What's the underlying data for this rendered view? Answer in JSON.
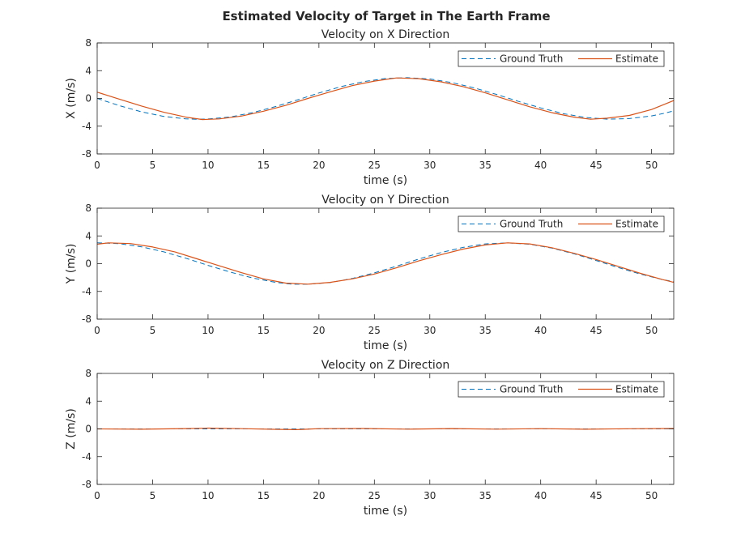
{
  "figure": {
    "title": "Estimated Velocity of Target in The Earth Frame"
  },
  "chart_data": [
    {
      "type": "line",
      "title": "Velocity on X Direction",
      "xlabel": "time (s)",
      "ylabel": "X (m/s)",
      "xlim": [
        0,
        52
      ],
      "ylim": [
        -8,
        8
      ],
      "xticks": [
        0,
        5,
        10,
        15,
        20,
        25,
        30,
        35,
        40,
        45,
        50
      ],
      "yticks": [
        -8,
        -4,
        0,
        4,
        8
      ],
      "grid": false,
      "legend_position": "top-right",
      "series": [
        {
          "name": "Ground Truth",
          "style": "dashed",
          "color": "#0072BD",
          "x": [
            0,
            2,
            4,
            6,
            8,
            9,
            10,
            12,
            14,
            16,
            18,
            20,
            22,
            24,
            26,
            28,
            30,
            32,
            34,
            36,
            38,
            40,
            42,
            44,
            46,
            48,
            50,
            51,
            52
          ],
          "y": [
            0,
            -1.04,
            -1.94,
            -2.59,
            -2.95,
            -3.0,
            -2.97,
            -2.67,
            -2.06,
            -1.22,
            -0.24,
            0.78,
            1.7,
            2.42,
            2.87,
            2.99,
            2.8,
            2.28,
            1.52,
            0.58,
            -0.43,
            -1.37,
            -2.18,
            -2.74,
            -2.99,
            -2.91,
            -2.52,
            -2.19,
            -1.8
          ]
        },
        {
          "name": "Estimate",
          "style": "solid",
          "color": "#D95319",
          "x": [
            0,
            2,
            4,
            6,
            8,
            9.5,
            11,
            13,
            15,
            17,
            19,
            21,
            23,
            25,
            27,
            29,
            31,
            33,
            35,
            37,
            39,
            41,
            43,
            44.5,
            46,
            48,
            50,
            52
          ],
          "y": [
            0.9,
            -0.1,
            -1.1,
            -2.0,
            -2.7,
            -3.05,
            -2.95,
            -2.55,
            -1.85,
            -1.0,
            0.0,
            0.95,
            1.85,
            2.5,
            2.95,
            2.85,
            2.4,
            1.7,
            0.8,
            -0.2,
            -1.2,
            -2.05,
            -2.7,
            -3.0,
            -2.85,
            -2.45,
            -1.6,
            -0.3
          ]
        }
      ]
    },
    {
      "type": "line",
      "title": "Velocity on Y Direction",
      "xlabel": "time (s)",
      "ylabel": "Y (m/s)",
      "xlim": [
        0,
        52
      ],
      "ylim": [
        -8,
        8
      ],
      "xticks": [
        0,
        5,
        10,
        15,
        20,
        25,
        30,
        35,
        40,
        45,
        50
      ],
      "yticks": [
        -8,
        -4,
        0,
        4,
        8
      ],
      "grid": false,
      "legend_position": "top-right",
      "series": [
        {
          "name": "Ground Truth",
          "style": "dashed",
          "color": "#0072BD",
          "x": [
            0,
            2,
            4,
            6,
            8,
            10,
            12,
            14,
            16,
            17.5,
            19,
            21,
            23,
            25,
            27,
            29,
            31,
            33,
            35,
            37,
            39,
            41,
            43,
            45,
            47,
            49,
            51,
            52
          ],
          "y": [
            3.0,
            2.88,
            2.43,
            1.71,
            0.78,
            -0.24,
            -1.22,
            -2.06,
            -2.67,
            -2.96,
            -2.97,
            -2.73,
            -2.14,
            -1.33,
            -0.36,
            0.66,
            1.6,
            2.35,
            2.85,
            3.0,
            2.8,
            2.24,
            1.43,
            0.46,
            -0.56,
            -1.51,
            -2.3,
            -2.6
          ]
        },
        {
          "name": "Estimate",
          "style": "solid",
          "color": "#D95319",
          "x": [
            0,
            1,
            3,
            5,
            7,
            9,
            11,
            13,
            15,
            17,
            19,
            21,
            23,
            25,
            27,
            29,
            31,
            33,
            35,
            37,
            39,
            41,
            43,
            45,
            47,
            49,
            51,
            52
          ],
          "y": [
            2.8,
            3.0,
            2.9,
            2.4,
            1.7,
            0.7,
            -0.3,
            -1.3,
            -2.2,
            -2.8,
            -2.95,
            -2.7,
            -2.2,
            -1.5,
            -0.6,
            0.4,
            1.3,
            2.1,
            2.7,
            3.0,
            2.85,
            2.3,
            1.5,
            0.6,
            -0.4,
            -1.4,
            -2.3,
            -2.7
          ]
        }
      ]
    },
    {
      "type": "line",
      "title": "Velocity on Z Direction",
      "xlabel": "time (s)",
      "ylabel": "Z (m/s)",
      "xlim": [
        0,
        52
      ],
      "ylim": [
        -8,
        8
      ],
      "xticks": [
        0,
        5,
        10,
        15,
        20,
        25,
        30,
        35,
        40,
        45,
        50
      ],
      "yticks": [
        -8,
        -4,
        0,
        4,
        8
      ],
      "grid": false,
      "legend_position": "top-right",
      "series": [
        {
          "name": "Ground Truth",
          "style": "dashed",
          "color": "#0072BD",
          "x": [
            0,
            52
          ],
          "y": [
            0,
            0
          ]
        },
        {
          "name": "Estimate",
          "style": "solid",
          "color": "#D95319",
          "x": [
            0,
            4,
            8,
            10,
            13,
            16,
            18,
            20,
            24,
            28,
            32,
            36,
            40,
            44,
            48,
            52
          ],
          "y": [
            0.0,
            -0.05,
            0.05,
            0.12,
            0.04,
            -0.06,
            -0.1,
            0.03,
            0.06,
            -0.04,
            0.05,
            -0.03,
            0.04,
            -0.05,
            0.02,
            0.06
          ]
        }
      ]
    }
  ]
}
